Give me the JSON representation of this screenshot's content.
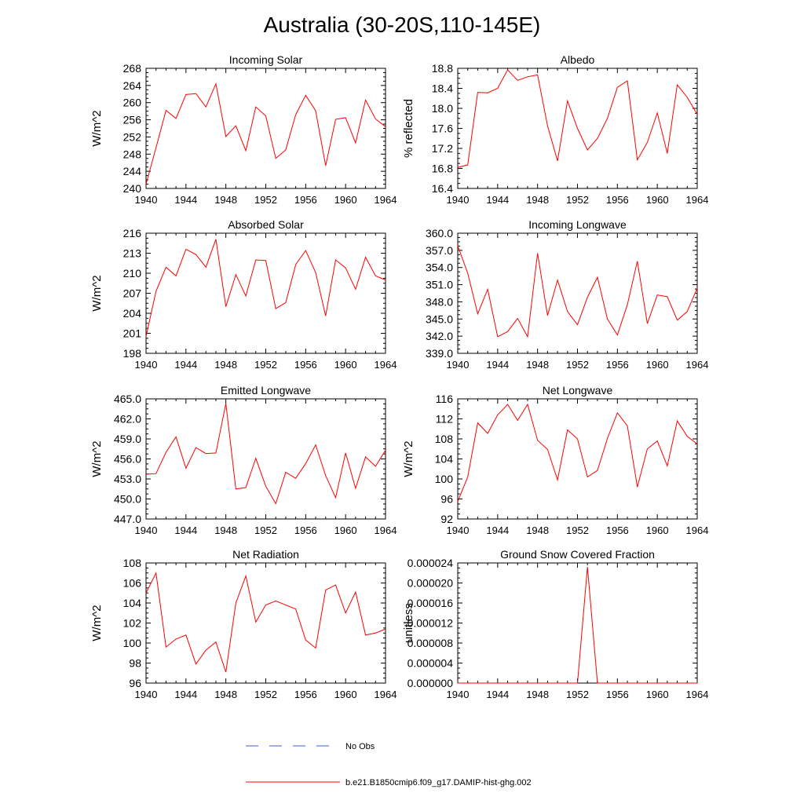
{
  "figure": {
    "title": "Australia (30-20S,110-145E)"
  },
  "legend": {
    "items": [
      {
        "label": "No Obs",
        "color": "#3b5bdb",
        "dash": true
      },
      {
        "label": "b.e21.B1850cmip6.f09_g17.DAMIP-hist-ghg.002",
        "color": "#ff0000",
        "dash": false
      }
    ]
  },
  "chart_data": [
    {
      "type": "line",
      "title": "Incoming Solar",
      "ylabel": "W/m^2",
      "xlim": [
        1940,
        1964
      ],
      "ylim": [
        240,
        268
      ],
      "xticks": [
        1940,
        1944,
        1948,
        1952,
        1956,
        1960,
        1964
      ],
      "xtick_labels": [
        "1940",
        "1944",
        "1948",
        "1952",
        "1956",
        "1960",
        "1964"
      ],
      "yticks": [
        240,
        244,
        248,
        252,
        256,
        260,
        264,
        268
      ],
      "ytick_labels": [
        "240",
        "244",
        "248",
        "252",
        "256",
        "260",
        "264",
        "268"
      ],
      "x": [
        1940,
        1941,
        1942,
        1943,
        1944,
        1945,
        1946,
        1947,
        1948,
        1949,
        1950,
        1951,
        1952,
        1953,
        1954,
        1955,
        1956,
        1957,
        1958,
        1959,
        1960,
        1961,
        1962,
        1963,
        1964
      ],
      "series": [
        {
          "name": "b.e21.B1850cmip6.f09_g17.DAMIP-hist-ghg.002",
          "color": "#ff0000",
          "values": [
            241,
            249.5,
            258.2,
            256.3,
            261.9,
            262.1,
            259,
            264.4,
            252.1,
            254.6,
            248.8,
            259,
            256.9,
            247,
            249,
            257.2,
            261.7,
            258.1,
            245.3,
            256.1,
            256.5,
            250.6,
            260.6,
            256.2,
            254.4
          ]
        }
      ]
    },
    {
      "type": "line",
      "title": "Albedo",
      "ylabel": "% reflected",
      "xlim": [
        1940,
        1964
      ],
      "ylim": [
        16.4,
        18.8
      ],
      "xticks": [
        1940,
        1944,
        1948,
        1952,
        1956,
        1960,
        1964
      ],
      "xtick_labels": [
        "1940",
        "1944",
        "1948",
        "1952",
        "1956",
        "1960",
        "1964"
      ],
      "yticks": [
        16.4,
        16.8,
        17.2,
        17.6,
        18.0,
        18.4,
        18.8
      ],
      "ytick_labels": [
        "16.4",
        "16.8",
        "17.2",
        "17.6",
        "18.0",
        "18.4",
        "18.8"
      ],
      "x": [
        1940,
        1941,
        1942,
        1943,
        1944,
        1945,
        1946,
        1947,
        1948,
        1949,
        1950,
        1951,
        1952,
        1953,
        1954,
        1955,
        1956,
        1957,
        1958,
        1959,
        1960,
        1961,
        1962,
        1963,
        1964
      ],
      "series": [
        {
          "name": "b.e21.B1850cmip6.f09_g17.DAMIP-hist-ghg.002",
          "color": "#ff0000",
          "values": [
            16.82,
            16.87,
            18.32,
            18.31,
            18.4,
            18.77,
            18.56,
            18.63,
            18.67,
            17.65,
            16.95,
            18.15,
            17.6,
            17.17,
            17.4,
            17.8,
            18.42,
            18.55,
            16.97,
            17.32,
            17.91,
            17.1,
            18.47,
            18.22,
            17.88
          ]
        }
      ]
    },
    {
      "type": "line",
      "title": "Absorbed Solar",
      "ylabel": "W/m^2",
      "xlim": [
        1940,
        1964
      ],
      "ylim": [
        198,
        216
      ],
      "xticks": [
        1940,
        1944,
        1948,
        1952,
        1956,
        1960,
        1964
      ],
      "xtick_labels": [
        "1940",
        "1944",
        "1948",
        "1952",
        "1956",
        "1960",
        "1964"
      ],
      "yticks": [
        198,
        201,
        204,
        207,
        210,
        213,
        216
      ],
      "ytick_labels": [
        "198",
        "201",
        "204",
        "207",
        "210",
        "213",
        "216"
      ],
      "x": [
        1940,
        1941,
        1942,
        1943,
        1944,
        1945,
        1946,
        1947,
        1948,
        1949,
        1950,
        1951,
        1952,
        1953,
        1954,
        1955,
        1956,
        1957,
        1958,
        1959,
        1960,
        1961,
        1962,
        1963,
        1964
      ],
      "series": [
        {
          "name": "b.e21.B1850cmip6.f09_g17.DAMIP-hist-ghg.002",
          "color": "#ff0000",
          "values": [
            200.5,
            207.3,
            210.9,
            209.6,
            213.6,
            212.8,
            210.9,
            215.1,
            205,
            209.8,
            206.6,
            212,
            211.9,
            204.7,
            205.6,
            211.3,
            213.4,
            210.1,
            203.6,
            212,
            210.8,
            207.6,
            212.4,
            209.6,
            209
          ]
        }
      ]
    },
    {
      "type": "line",
      "title": "Incoming Longwave",
      "ylabel": "",
      "xlim": [
        1940,
        1964
      ],
      "ylim": [
        339.0,
        360.0
      ],
      "xticks": [
        1940,
        1944,
        1948,
        1952,
        1956,
        1960,
        1964
      ],
      "xtick_labels": [
        "1940",
        "1944",
        "1948",
        "1952",
        "1956",
        "1960",
        "1964"
      ],
      "yticks": [
        339,
        342,
        345,
        348,
        351,
        354,
        357,
        360
      ],
      "ytick_labels": [
        "339.0",
        "342.0",
        "345.0",
        "348.0",
        "351.0",
        "354.0",
        "357.0",
        "360.0"
      ],
      "x": [
        1940,
        1941,
        1942,
        1943,
        1944,
        1945,
        1946,
        1947,
        1948,
        1949,
        1950,
        1951,
        1952,
        1953,
        1954,
        1955,
        1956,
        1957,
        1958,
        1959,
        1960,
        1961,
        1962,
        1963,
        1964
      ],
      "series": [
        {
          "name": "b.e21.B1850cmip6.f09_g17.DAMIP-hist-ghg.002",
          "color": "#ff0000",
          "values": [
            357.8,
            353,
            345.9,
            350.2,
            341.9,
            342.8,
            345.1,
            341.9,
            356.5,
            345.6,
            351.8,
            346.3,
            344,
            348.8,
            352.3,
            345,
            342.2,
            347.5,
            355.1,
            344.2,
            349.2,
            348.9,
            344.8,
            346.3,
            350.4
          ]
        }
      ]
    },
    {
      "type": "line",
      "title": "Emitted Longwave",
      "ylabel": "W/m^2",
      "xlim": [
        1940,
        1964
      ],
      "ylim": [
        447.0,
        465.0
      ],
      "xticks": [
        1940,
        1944,
        1948,
        1952,
        1956,
        1960,
        1964
      ],
      "xtick_labels": [
        "1940",
        "1944",
        "1948",
        "1952",
        "1956",
        "1960",
        "1964"
      ],
      "yticks": [
        447,
        450,
        453,
        456,
        459,
        462,
        465
      ],
      "ytick_labels": [
        "447.0",
        "450.0",
        "453.0",
        "456.0",
        "459.0",
        "462.0",
        "465.0"
      ],
      "x": [
        1940,
        1941,
        1942,
        1943,
        1944,
        1945,
        1946,
        1947,
        1948,
        1949,
        1950,
        1951,
        1952,
        1953,
        1954,
        1955,
        1956,
        1957,
        1958,
        1959,
        1960,
        1961,
        1962,
        1963,
        1964
      ],
      "series": [
        {
          "name": "b.e21.B1850cmip6.f09_g17.DAMIP-hist-ghg.002",
          "color": "#ff0000",
          "values": [
            453.7,
            453.8,
            457,
            459.3,
            454.6,
            457.7,
            456.8,
            456.9,
            464.3,
            451.5,
            451.7,
            456.1,
            451.9,
            449.3,
            454,
            453.1,
            455.3,
            458.1,
            453.5,
            450.2,
            456.9,
            451.6,
            456.3,
            454.9,
            457.3
          ]
        }
      ]
    },
    {
      "type": "line",
      "title": "Net Longwave",
      "ylabel": "W/m^2",
      "xlim": [
        1940,
        1964
      ],
      "ylim": [
        92,
        116
      ],
      "xticks": [
        1940,
        1944,
        1948,
        1952,
        1956,
        1960,
        1964
      ],
      "xtick_labels": [
        "1940",
        "1944",
        "1948",
        "1952",
        "1956",
        "1960",
        "1964"
      ],
      "yticks": [
        92,
        96,
        100,
        104,
        108,
        112,
        116
      ],
      "ytick_labels": [
        "92",
        "96",
        "100",
        "104",
        "108",
        "112",
        "116"
      ],
      "x": [
        1940,
        1941,
        1942,
        1943,
        1944,
        1945,
        1946,
        1947,
        1948,
        1949,
        1950,
        1951,
        1952,
        1953,
        1954,
        1955,
        1956,
        1957,
        1958,
        1959,
        1960,
        1961,
        1962,
        1963,
        1964
      ],
      "series": [
        {
          "name": "b.e21.B1850cmip6.f09_g17.DAMIP-hist-ghg.002",
          "color": "#ff0000",
          "values": [
            95.5,
            100.4,
            111.2,
            109.1,
            112.8,
            114.9,
            111.7,
            114.9,
            107.7,
            105.9,
            99.8,
            109.8,
            108,
            100.4,
            101.7,
            108.1,
            113.2,
            110.6,
            98.4,
            106,
            107.6,
            102.6,
            111.6,
            108.5,
            107
          ]
        }
      ]
    },
    {
      "type": "line",
      "title": "Net Radiation",
      "ylabel": "W/m^2",
      "xlim": [
        1940,
        1964
      ],
      "ylim": [
        96,
        108
      ],
      "xticks": [
        1940,
        1944,
        1948,
        1952,
        1956,
        1960,
        1964
      ],
      "xtick_labels": [
        "1940",
        "1944",
        "1948",
        "1952",
        "1956",
        "1960",
        "1964"
      ],
      "yticks": [
        96,
        98,
        100,
        102,
        104,
        106,
        108
      ],
      "ytick_labels": [
        "96",
        "98",
        "100",
        "102",
        "104",
        "106",
        "108"
      ],
      "x": [
        1940,
        1941,
        1942,
        1943,
        1944,
        1945,
        1946,
        1947,
        1948,
        1949,
        1950,
        1951,
        1952,
        1953,
        1954,
        1955,
        1956,
        1957,
        1958,
        1959,
        1960,
        1961,
        1962,
        1963,
        1964
      ],
      "series": [
        {
          "name": "b.e21.B1850cmip6.f09_g17.DAMIP-hist-ghg.002",
          "color": "#ff0000",
          "values": [
            105,
            107,
            99.6,
            100.4,
            100.8,
            97.9,
            99.3,
            100.1,
            97.1,
            104,
            106.7,
            102.1,
            103.8,
            104.2,
            103.8,
            103.4,
            100.3,
            99.5,
            105.3,
            105.8,
            103,
            105.1,
            100.8,
            101,
            101.4
          ]
        }
      ]
    },
    {
      "type": "line",
      "title": "Ground Snow Covered Fraction",
      "ylabel": "unitless",
      "xlim": [
        1940,
        1964
      ],
      "ylim": [
        0,
        2.4e-05
      ],
      "xticks": [
        1940,
        1944,
        1948,
        1952,
        1956,
        1960,
        1964
      ],
      "xtick_labels": [
        "1940",
        "1944",
        "1948",
        "1952",
        "1956",
        "1960",
        "1964"
      ],
      "yticks": [
        0,
        4e-06,
        8e-06,
        1.2e-05,
        1.6e-05,
        2e-05,
        2.4e-05
      ],
      "ytick_labels": [
        "0.000000",
        "0.000004",
        "0.000008",
        "0.000012",
        "0.000016",
        "0.000020",
        "0.000024"
      ],
      "x": [
        1940,
        1941,
        1942,
        1943,
        1944,
        1945,
        1946,
        1947,
        1948,
        1949,
        1950,
        1951,
        1952,
        1953,
        1954,
        1955,
        1956,
        1957,
        1958,
        1959,
        1960,
        1961,
        1962,
        1963,
        1964
      ],
      "series": [
        {
          "name": "b.e21.B1850cmip6.f09_g17.DAMIP-hist-ghg.002",
          "color": "#ff0000",
          "values": [
            0,
            0,
            0,
            0,
            0,
            0,
            0,
            0,
            0,
            0,
            0,
            0,
            0,
            2.32e-05,
            0,
            0,
            0,
            0,
            0,
            0,
            0,
            0,
            0,
            0,
            0
          ]
        }
      ]
    }
  ]
}
